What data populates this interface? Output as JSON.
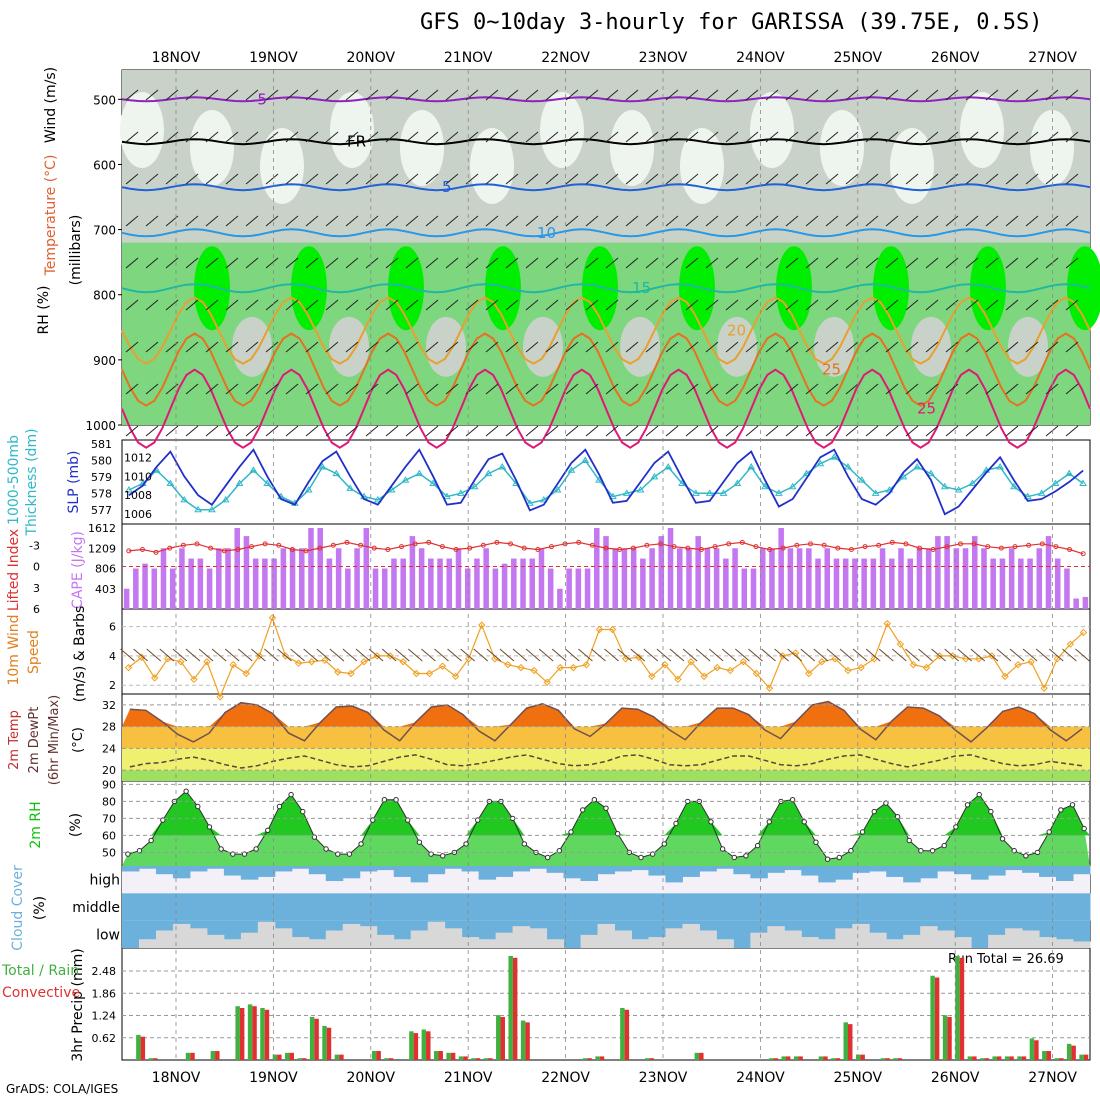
{
  "title": "GFS 0~10day 3-hourly for GARISSA (39.75E, 0.5S)",
  "footer": "GrADS: COLA/IGES",
  "run_total_label": "Run Total = 26.69",
  "colors": {
    "rh_light": "#c8d2c8",
    "rh_mid": "#7ed67e",
    "rh_high": "#00ee00",
    "cape": "#c478f0",
    "lifted": "#e03030",
    "slp": "#2030c8",
    "thick": "#30b8c8",
    "wind10": "#f0a020",
    "rh2m": "#10c010",
    "cloud": "#6cb0dc",
    "cloud_low": "#d8d8d8",
    "precip_total": "#40b040",
    "precip_conv": "#e03030",
    "temp_fill": "#f07010"
  },
  "chart_data": [
    {
      "type": "heatmap",
      "panel": "upper-air",
      "ylabel": "Wind (m/s) Temperature (°C) RH (%) (millibars)",
      "ylabel_parts": [
        "Wind (m/s)",
        "Temperature (°C)",
        "RH (%)",
        "(millibars)"
      ],
      "yticks": [
        500,
        600,
        700,
        800,
        900,
        1000
      ],
      "temperature_contours": [
        {
          "label": "-5",
          "pressure": 500,
          "color": "#9020c0"
        },
        {
          "label": "FR",
          "pressure": 565,
          "color": "#000000"
        },
        {
          "label": "5",
          "pressure": 635,
          "color": "#2060d8"
        },
        {
          "label": "10",
          "pressure": 705,
          "color": "#2898e8"
        },
        {
          "label": "15",
          "pressure": 790,
          "color": "#20b8a0"
        },
        {
          "label": "20",
          "pressure": 855,
          "color": "#e8a030"
        },
        {
          "label": "25",
          "pressure": 915,
          "color": "#e87020"
        },
        {
          "label": "25",
          "pressure": 975,
          "color": "#e01878"
        }
      ]
    },
    {
      "type": "line",
      "panel": "slp-thickness",
      "ylabel": "1000-500mb Thickness (dm) SLP (mb)",
      "ylabel_parts": [
        "1000-500mb",
        "Thickness (dm)",
        "SLP (mb)"
      ],
      "left_ticks": [
        577,
        578,
        579,
        580,
        581
      ],
      "right_ticks": [
        1006,
        1008,
        1010,
        1012
      ],
      "ylim_left": [
        576.5,
        581
      ],
      "ylim_right": [
        1005.6,
        1013.4
      ],
      "series": [
        {
          "name": "SLP (mb)",
          "axis": "right",
          "values": [
            1008,
            1009,
            1011,
            1012.6,
            1010,
            1008,
            1007,
            1009,
            1011,
            1012.8,
            1010,
            1007.6,
            1007,
            1009.4,
            1011.6,
            1012.6,
            1010,
            1007.6,
            1007,
            1009,
            1011,
            1012.8,
            1010,
            1007,
            1007.2,
            1009.6,
            1011.8,
            1012.4,
            1009.6,
            1006.4,
            1007,
            1009.2,
            1011.4,
            1012.8,
            1010.2,
            1007.2,
            1007.4,
            1009.4,
            1011.4,
            1012.6,
            1009.8,
            1007.2,
            1007.4,
            1009.4,
            1011.4,
            1012.6,
            1009.6,
            1006.8,
            1007.6,
            1009.8,
            1012,
            1012.8,
            1010,
            1007.6,
            1007,
            1008.2,
            1010.4,
            1011.8,
            1009.6,
            1006,
            1006.8,
            1008.6,
            1010.4,
            1012,
            1009.6,
            1007.4,
            1007.6,
            1008.4,
            1009.4,
            1010.6
          ]
        },
        {
          "name": "Thickness (dm)",
          "axis": "left",
          "values": [
            578.2,
            578.6,
            579.4,
            578.6,
            577.6,
            577,
            577,
            577.6,
            578.6,
            579.4,
            578.6,
            577.8,
            577.4,
            578.2,
            579.6,
            579.2,
            578.3,
            577.8,
            577.6,
            578.2,
            578.8,
            579.2,
            578.6,
            577.8,
            578,
            578.4,
            579.2,
            579.6,
            578.6,
            577.4,
            577.6,
            578.2,
            579.4,
            580,
            578.8,
            577.8,
            578,
            578.2,
            579,
            579.6,
            578.6,
            578,
            578,
            578,
            578.6,
            579.6,
            578.4,
            578,
            578.4,
            579.2,
            579.8,
            580.2,
            579.6,
            578.8,
            578,
            578.2,
            579,
            579.6,
            579.2,
            578.4,
            578.2,
            578.6,
            579.4,
            579.6,
            578.4,
            577.8,
            578,
            578.6,
            579.2,
            578.6
          ]
        }
      ]
    },
    {
      "type": "bar",
      "panel": "cape-li",
      "ylabel_left": "Lifted Index",
      "ylabel_right": "CAPE (J/kg)",
      "li_ticks": [
        -3,
        0,
        3,
        6
      ],
      "li_tick_labels": [
        "-3",
        "0",
        "3",
        "6"
      ],
      "cape_ticks": [
        403,
        806,
        1209,
        1612
      ],
      "ylim_cape": [
        0,
        1612
      ],
      "ylim_li": [
        6,
        -6
      ],
      "cape_values": [
        403,
        806,
        903,
        806,
        1209,
        806,
        1209,
        1004,
        1004,
        806,
        1209,
        1209,
        1612,
        1451,
        1004,
        1004,
        1004,
        1209,
        1209,
        1209,
        1612,
        1612,
        1004,
        1209,
        806,
        1209,
        1612,
        806,
        806,
        1004,
        1004,
        1451,
        1209,
        1004,
        1004,
        1004,
        1209,
        806,
        1004,
        1209,
        806,
        902,
        1004,
        1004,
        1004,
        1209,
        806,
        403,
        806,
        806,
        806,
        1612,
        1451,
        1209,
        1209,
        1209,
        1004,
        1209,
        1451,
        1612,
        1209,
        1209,
        1451,
        1209,
        1209,
        1004,
        1209,
        806,
        806,
        1209,
        1209,
        1612,
        1209,
        1209,
        1209,
        1004,
        1209,
        1004,
        1004,
        1004,
        1004,
        1004,
        1209,
        1004,
        1209,
        1004,
        1209,
        1209,
        1451,
        1451,
        1209,
        1209,
        1451,
        1209,
        1004,
        1004,
        1209,
        1004,
        1004,
        1209,
        1451,
        1004,
        806,
        209,
        240
      ],
      "li_values": [
        -2.2,
        -2.4,
        -2,
        -2.6,
        -3,
        -3.2,
        -2.6,
        -2.2,
        -2.4,
        -2.8,
        -3.2,
        -3,
        -2.4,
        -2.2,
        -2.6,
        -3,
        -3.4,
        -3,
        -2.6,
        -2.4,
        -2.8,
        -3.2,
        -3.4,
        -2.8,
        -2.4,
        -2.6,
        -3,
        -3.4,
        -3.2,
        -2.6,
        -2.4,
        -2.8,
        -3.2,
        -3.4,
        -3,
        -2.6,
        -2.4,
        -2.6,
        -3,
        -3.2,
        -2.8,
        -2.6,
        -2.4,
        -2.8,
        -3.2,
        -3.4,
        -2.8,
        -2.4,
        -2.6,
        -3,
        -3.2,
        -3,
        -2.6,
        -2.4,
        -2.8,
        -3,
        -3.4,
        -3.2,
        -2.6,
        -2.4,
        -2.8,
        -3.2,
        -3.2,
        -2.8,
        -2.6,
        -2.8,
        -3,
        -3.2,
        -2.8,
        -2.4,
        -1.8
      ]
    },
    {
      "type": "line",
      "panel": "wind10m",
      "ylabel": "10m Wind Speed (m/s) & Barbs",
      "ylabel_parts": [
        "10m Wind",
        "Speed",
        "(m/s) & Barbs"
      ],
      "yticks": [
        2,
        4,
        6
      ],
      "ylim": [
        1.4,
        7.2
      ],
      "values": [
        3.2,
        3.9,
        2.5,
        3.8,
        3.6,
        2.4,
        3.6,
        1.2,
        3.4,
        2.8,
        4,
        6.6,
        4,
        3.5,
        3.6,
        3.7,
        2.9,
        2.8,
        3.6,
        4,
        4,
        3.6,
        2.8,
        2.8,
        3.3,
        2.6,
        3.8,
        6.1,
        3.8,
        3.4,
        3.2,
        3,
        2.2,
        3.2,
        3.2,
        3.4,
        5.8,
        5.8,
        3.8,
        3.9,
        2.6,
        3.4,
        2.4,
        3.6,
        2.6,
        3.2,
        3,
        3.6,
        2.8,
        1.8,
        4,
        4.2,
        2.8,
        3.6,
        3.8,
        3,
        3.2,
        3.8,
        6.2,
        4.8,
        3.4,
        3.2,
        4,
        4,
        3.8,
        3.8,
        4,
        2.6,
        3.4,
        3.6,
        1.8,
        3.8,
        4.8,
        5.6
      ]
    },
    {
      "type": "area",
      "panel": "temp2m",
      "ylabel": "2m Temp 2m DewPt (6hr Min/Max) (°C)",
      "ylabel_parts": [
        "2m Temp",
        "2m DewPt",
        "(6hr Min/Max)",
        "(°C)"
      ],
      "yticks": [
        20,
        24,
        28,
        32
      ],
      "ylim": [
        18,
        34
      ],
      "temp_values": [
        31.2,
        31,
        29,
        26.6,
        25.2,
        26.8,
        30.6,
        32.4,
        32,
        30.4,
        26.8,
        25.4,
        28.8,
        31.6,
        31.8,
        30.6,
        27.4,
        25.4,
        28.8,
        31.6,
        32,
        30.2,
        27.2,
        25.4,
        28.4,
        31.4,
        32.2,
        31,
        27.6,
        26.2,
        28.6,
        31.4,
        31.2,
        29.8,
        27.4,
        25.6,
        28.8,
        31.4,
        31.4,
        30.2,
        27.4,
        25.8,
        29,
        32,
        32.6,
        31,
        27.6,
        25.6,
        29,
        31.6,
        31.4,
        30,
        27.4,
        25.2,
        27.8,
        30.8,
        31.6,
        30.4,
        27.4,
        25.4,
        27.6
      ],
      "dewpt_values": [
        20.6,
        21.2,
        21.4,
        22,
        22.4,
        21.8,
        21,
        20.4,
        20.8,
        21.6,
        22.2,
        22.6,
        21.8,
        21,
        20.6,
        20.8,
        21.6,
        22.4,
        22.8,
        22,
        21,
        20.8,
        21.2,
        21.8,
        22.4,
        22.8,
        22,
        21.2,
        20.8,
        21,
        21.6,
        22.6,
        22.8,
        22,
        21,
        20.8,
        21,
        21.8,
        22.6,
        22.6,
        21.8,
        21,
        20.8,
        21.2,
        22,
        22.6,
        22.8,
        22,
        21.2,
        20.6,
        21.2,
        21.8,
        22.6,
        22.8,
        22,
        21.2,
        20.8,
        21,
        21.6,
        21.2,
        20.8
      ]
    },
    {
      "type": "area",
      "panel": "rh2m",
      "ylabel": "2m RH (%)",
      "ylabel_parts": [
        "2m RH",
        "(%)"
      ],
      "yticks": [
        50,
        60,
        70,
        80,
        90
      ],
      "ylim": [
        42,
        92
      ],
      "values": [
        49,
        51,
        57,
        69,
        80,
        86,
        77,
        65,
        52,
        49,
        49,
        52,
        63,
        77,
        84,
        74,
        59,
        52,
        49,
        49,
        55,
        69,
        81,
        81,
        69,
        56,
        49,
        48,
        50,
        55,
        69,
        80,
        80,
        70,
        55,
        50,
        47,
        51,
        62,
        75,
        81,
        76,
        61,
        50,
        47,
        49,
        55,
        67,
        80,
        80,
        68,
        52,
        47,
        48,
        54,
        68,
        80,
        81,
        68,
        56,
        46,
        47,
        51,
        62,
        74,
        79,
        71,
        57,
        51,
        51,
        54,
        65,
        78,
        84,
        74,
        58,
        51,
        48,
        50,
        62,
        75,
        78,
        64
      ]
    },
    {
      "type": "area",
      "panel": "cloud",
      "ylabel": "Cloud Cover (%)",
      "ylabel_parts": [
        "Cloud Cover",
        "(%)"
      ],
      "yticks": [
        "high",
        "middle",
        "low"
      ],
      "high_values": [
        20,
        10,
        30,
        45,
        20,
        10,
        35,
        50,
        40,
        20,
        10,
        30,
        55,
        45,
        20,
        15,
        40,
        60,
        30,
        10,
        20,
        50,
        40,
        20,
        10,
        25,
        45,
        55,
        30,
        20,
        15,
        35,
        60,
        40,
        20,
        10,
        30,
        45,
        25,
        15,
        35,
        60,
        50,
        25,
        20,
        40,
        60,
        45,
        20,
        30,
        50,
        35,
        15,
        25,
        40,
        55,
        30
      ],
      "middle_values": [
        100,
        100,
        100,
        100,
        100,
        100,
        100,
        100,
        100,
        100,
        100,
        100,
        100,
        100,
        100,
        100,
        100,
        100,
        100,
        100,
        100,
        100,
        100,
        100,
        100,
        100,
        100,
        100,
        100,
        100,
        100,
        100,
        100,
        100,
        100,
        100,
        100,
        100,
        100,
        100,
        100,
        100,
        100,
        100,
        100,
        100,
        100,
        100,
        100,
        100,
        100,
        100,
        100,
        100,
        100,
        100,
        100
      ],
      "low_values": [
        0,
        20,
        40,
        55,
        45,
        30,
        20,
        35,
        60,
        45,
        25,
        20,
        40,
        55,
        50,
        30,
        20,
        40,
        60,
        45,
        25,
        20,
        35,
        50,
        45,
        20,
        0,
        30,
        55,
        40,
        20,
        25,
        45,
        55,
        40,
        20,
        0,
        35,
        50,
        40,
        25,
        20,
        45,
        55,
        35,
        20,
        30,
        50,
        40,
        25,
        0,
        30,
        45,
        40,
        25,
        20,
        15
      ]
    },
    {
      "type": "bar",
      "panel": "precip",
      "ylabel": "3hr Precip (mm)",
      "ylabel_left": "Total / Rain Convective",
      "ylabel_left_parts": [
        "Total / Rain",
        "Convective"
      ],
      "yticks": [
        0.62,
        1.24,
        1.86,
        2.48
      ],
      "ylim": [
        0,
        2.9
      ],
      "total_values": [
        0,
        0.7,
        0.05,
        0,
        0,
        0.2,
        0,
        0.25,
        0,
        1.5,
        1.55,
        1.45,
        0.15,
        0.2,
        0.05,
        1.2,
        0.95,
        0.15,
        0,
        0,
        0.25,
        0.05,
        0,
        0.8,
        0.85,
        0.25,
        0.2,
        0.1,
        0.05,
        0.05,
        1.25,
        2.9,
        1.1,
        0,
        0,
        0,
        0,
        0.05,
        0.1,
        0,
        1.45,
        0,
        0.05,
        0,
        0,
        0,
        0.2,
        0,
        0,
        0,
        0,
        0,
        0.05,
        0.1,
        0.1,
        0,
        0.1,
        0.05,
        1.05,
        0.15,
        0,
        0.05,
        0.05,
        0,
        0,
        2.35,
        1.25,
        2.9,
        0.1,
        0.05,
        0.1,
        0.1,
        0.1,
        0.6,
        0.25,
        0.05,
        0.45,
        0.15
      ],
      "conv_values": [
        0,
        0.65,
        0.05,
        0,
        0,
        0.2,
        0,
        0.25,
        0,
        1.45,
        1.5,
        1.4,
        0.15,
        0.2,
        0.05,
        1.15,
        0.9,
        0.15,
        0,
        0,
        0.25,
        0.05,
        0,
        0.75,
        0.8,
        0.25,
        0.2,
        0.1,
        0.05,
        0.05,
        1.2,
        2.85,
        1.05,
        0,
        0,
        0,
        0,
        0.05,
        0.1,
        0,
        1.4,
        0,
        0.05,
        0,
        0,
        0,
        0.2,
        0,
        0,
        0,
        0,
        0,
        0.05,
        0.1,
        0.1,
        0,
        0.1,
        0.05,
        1,
        0.15,
        0,
        0.05,
        0.05,
        0,
        0,
        2.3,
        1.2,
        2.85,
        0.1,
        0.05,
        0.1,
        0.1,
        0.1,
        0.55,
        0.25,
        0.05,
        0.4,
        0.15
      ]
    }
  ],
  "date_labels": [
    "18NOV",
    "19NOV",
    "20NOV",
    "21NOV",
    "22NOV",
    "23NOV",
    "24NOV",
    "25NOV",
    "26NOV",
    "27NOV"
  ]
}
